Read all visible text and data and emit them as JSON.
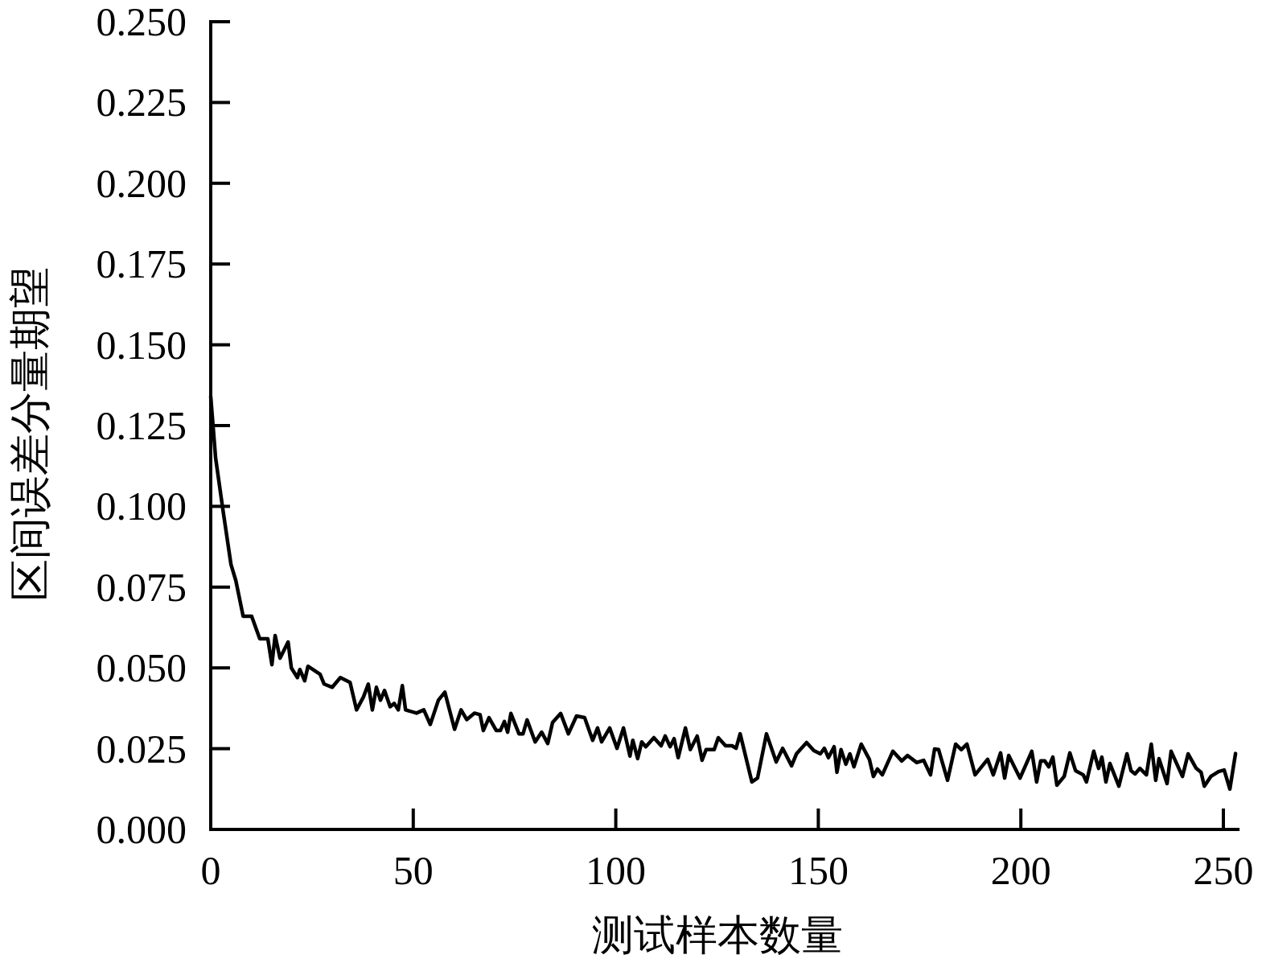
{
  "chart_data": {
    "type": "line",
    "xlabel": "测试样本数量",
    "ylabel": "区间误差分量期望",
    "xlim": [
      0,
      254
    ],
    "ylim": [
      0,
      0.25
    ],
    "xticks": [
      0,
      50,
      100,
      150,
      200,
      250
    ],
    "yticks": [
      {
        "value": 0,
        "label": "0.000"
      },
      {
        "value": 0.025,
        "label": "0.025"
      },
      {
        "value": 0.05,
        "label": "0.050"
      },
      {
        "value": 0.075,
        "label": "0.075"
      },
      {
        "value": 0.1,
        "label": "0.100"
      },
      {
        "value": 0.125,
        "label": "0.125"
      },
      {
        "value": 0.15,
        "label": "0.150"
      },
      {
        "value": 0.175,
        "label": "0.175"
      },
      {
        "value": 0.2,
        "label": "0.200"
      },
      {
        "value": 0.225,
        "label": "0.225"
      },
      {
        "value": 0.25,
        "label": "0.250"
      }
    ],
    "x": [
      0,
      1.2,
      3,
      5,
      6.2,
      8,
      10.1,
      12.1,
      14.1,
      15.1,
      15.9,
      17.1,
      19.1,
      19.9,
      21.4,
      22,
      23.2,
      24,
      27,
      28,
      30,
      32,
      34.4,
      36,
      37.7,
      38.9,
      39.9,
      40.9,
      41.9,
      42.9,
      44.3,
      45.3,
      46.3,
      47.3,
      48.1,
      50.8,
      52.6,
      54.2,
      56.2,
      57.8,
      60.2,
      61.8,
      63.2,
      65.1,
      66.5,
      67.3,
      68.7,
      70.5,
      71.5,
      72.5,
      73.3,
      74.1,
      76.1,
      77.1,
      78.1,
      80.1,
      81.7,
      83.2,
      84.4,
      86.4,
      88.3,
      90.3,
      92.3,
      94.3,
      95.5,
      96.5,
      98.5,
      100.3,
      101.9,
      103.5,
      104.2,
      105.4,
      106.4,
      107.4,
      109.4,
      111.2,
      112.2,
      113.4,
      114.4,
      115.4,
      117.2,
      118.4,
      120.1,
      121.3,
      122.3,
      124.3,
      125.3,
      127.1,
      128.7,
      129.7,
      130.7,
      133.6,
      135,
      137.2,
      139.6,
      141.2,
      143.4,
      144.6,
      147.1,
      148.9,
      150.5,
      151.5,
      152.5,
      153.9,
      154.6,
      155.6,
      156.8,
      157.8,
      158.8,
      160.6,
      162.6,
      163.6,
      164.6,
      165.8,
      168.4,
      170.6,
      172,
      174.3,
      176,
      177.7,
      178.7,
      179.7,
      181.9,
      183.9,
      185.3,
      186.7,
      188.7,
      191.8,
      193.2,
      195,
      196,
      197,
      199.8,
      202.7,
      203.9,
      204.9,
      205.9,
      206.9,
      207.9,
      208.9,
      210.7,
      212.1,
      213.5,
      215.4,
      216.2,
      218,
      219.2,
      220,
      221,
      222,
      224.2,
      226.2,
      227.2,
      228.2,
      229.4,
      231,
      232.2,
      233.3,
      234.1,
      236.1,
      237.1,
      239.9,
      241.3,
      243.3,
      244.5,
      245.3,
      246.9,
      248.8,
      250.2,
      251.6,
      253
    ],
    "series": [
      {
        "color": "#000000",
        "values": [
          0.134,
          0.115,
          0.099,
          0.082,
          0.077,
          0.066,
          0.066,
          0.059,
          0.059,
          0.051,
          0.06,
          0.053,
          0.058,
          0.05,
          0.047,
          0.0495,
          0.046,
          0.0505,
          0.048,
          0.045,
          0.044,
          0.047,
          0.0455,
          0.037,
          0.041,
          0.045,
          0.037,
          0.044,
          0.04,
          0.043,
          0.038,
          0.039,
          0.037,
          0.0445,
          0.037,
          0.036,
          0.037,
          0.0325,
          0.04,
          0.0425,
          0.031,
          0.037,
          0.034,
          0.036,
          0.0355,
          0.0306,
          0.0346,
          0.0306,
          0.0306,
          0.0334,
          0.0301,
          0.0359,
          0.0296,
          0.0296,
          0.0339,
          0.0271,
          0.0301,
          0.0266,
          0.0331,
          0.0359,
          0.0296,
          0.0351,
          0.0346,
          0.0276,
          0.0314,
          0.0271,
          0.0314,
          0.0251,
          0.0314,
          0.0227,
          0.0276,
          0.0219,
          0.0271,
          0.0256,
          0.0284,
          0.0259,
          0.0289,
          0.0256,
          0.0281,
          0.0222,
          0.0314,
          0.0247,
          0.0289,
          0.0214,
          0.0247,
          0.0247,
          0.0284,
          0.0259,
          0.0259,
          0.0251,
          0.0296,
          0.0147,
          0.0159,
          0.0296,
          0.0209,
          0.0251,
          0.0197,
          0.0234,
          0.0269,
          0.0244,
          0.0234,
          0.0251,
          0.0222,
          0.0256,
          0.0177,
          0.0247,
          0.0202,
          0.0234,
          0.0194,
          0.0264,
          0.0217,
          0.0164,
          0.0187,
          0.0169,
          0.0242,
          0.0212,
          0.0229,
          0.0207,
          0.0214,
          0.0169,
          0.0249,
          0.0247,
          0.0152,
          0.0264,
          0.0247,
          0.0264,
          0.0169,
          0.0217,
          0.0169,
          0.0237,
          0.0159,
          0.0229,
          0.0159,
          0.0242,
          0.0147,
          0.0212,
          0.0212,
          0.0194,
          0.0224,
          0.0137,
          0.0164,
          0.0237,
          0.0182,
          0.0169,
          0.0147,
          0.0242,
          0.0189,
          0.0224,
          0.0147,
          0.0204,
          0.0134,
          0.0234,
          0.0182,
          0.0172,
          0.0189,
          0.0169,
          0.0264,
          0.0152,
          0.0219,
          0.0142,
          0.0242,
          0.0164,
          0.0234,
          0.0189,
          0.0177,
          0.0134,
          0.0164,
          0.0179,
          0.0184,
          0.0125,
          0.0235
        ]
      }
    ]
  }
}
